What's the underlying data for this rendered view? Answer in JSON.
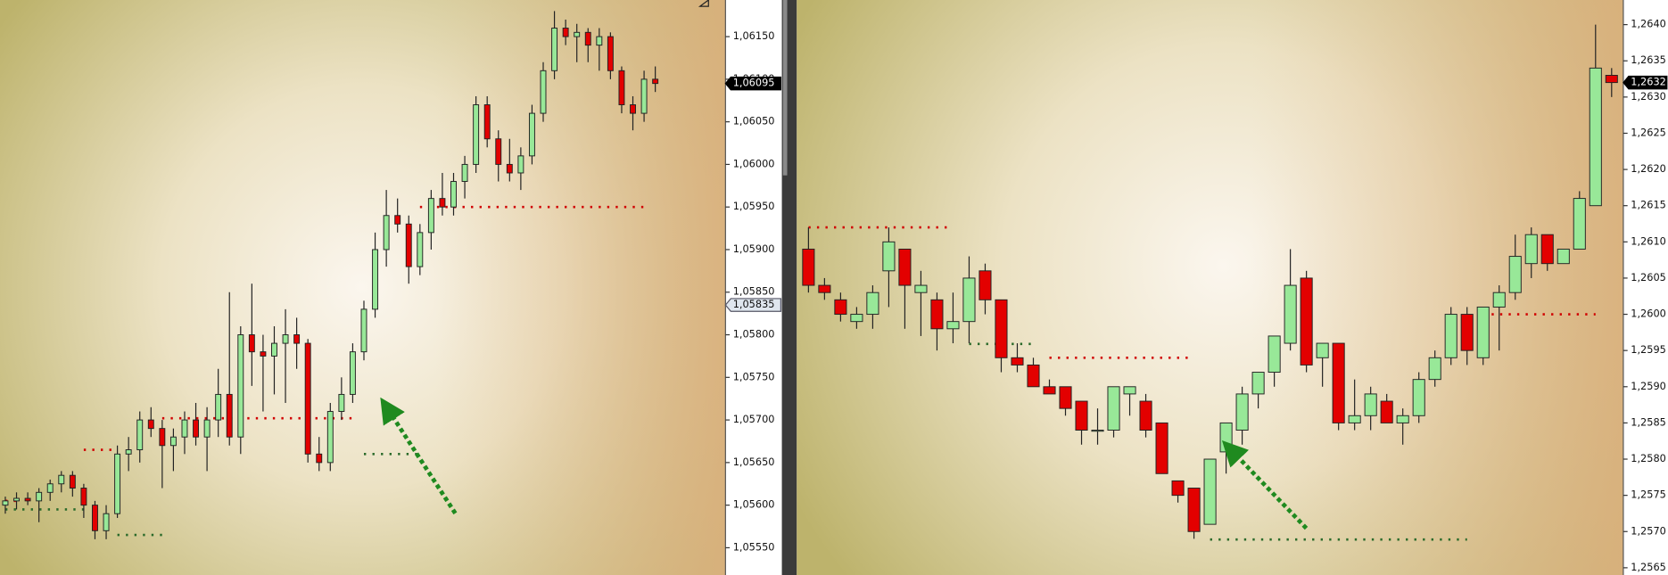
{
  "chart_data": [
    {
      "type": "candlestick",
      "ylim": [
        1.05518,
        1.06193
      ],
      "yticks": [
        {
          "value": 1.0555,
          "label": "1,05550"
        },
        {
          "value": 1.056,
          "label": "1,05600"
        },
        {
          "value": 1.0565,
          "label": "1,05650"
        },
        {
          "value": 1.057,
          "label": "1,05700"
        },
        {
          "value": 1.0575,
          "label": "1,05750"
        },
        {
          "value": 1.058,
          "label": "1,05800"
        },
        {
          "value": 1.0585,
          "label": "1,05850"
        },
        {
          "value": 1.059,
          "label": "1,05900"
        },
        {
          "value": 1.0595,
          "label": "1,05950"
        },
        {
          "value": 1.06,
          "label": "1,06000"
        },
        {
          "value": 1.0605,
          "label": "1,06050"
        },
        {
          "value": 1.061,
          "label": "1,06100"
        },
        {
          "value": 1.0615,
          "label": "1,06150"
        }
      ],
      "up_color": "#98e898",
      "down_color": "#e30000",
      "series": {
        "open": [
          1.056,
          1.05605,
          1.05608,
          1.05605,
          1.05615,
          1.05625,
          1.05635,
          1.0562,
          1.056,
          1.0557,
          1.0559,
          1.0566,
          1.05665,
          1.057,
          1.0569,
          1.0567,
          1.0568,
          1.057,
          1.0568,
          1.057,
          1.0573,
          1.0568,
          1.058,
          1.0578,
          1.05775,
          1.0579,
          1.058,
          1.0579,
          1.0566,
          1.0565,
          1.0571,
          1.0573,
          1.0578,
          1.0583,
          1.059,
          1.0594,
          1.0593,
          1.0588,
          1.0592,
          1.0596,
          1.0595,
          1.0598,
          1.06,
          1.0607,
          1.0603,
          1.06,
          1.0599,
          1.0601,
          1.0606,
          1.0611,
          1.0616,
          1.0615,
          1.06155,
          1.0614,
          1.0615,
          1.0611,
          1.0607,
          1.0606,
          1.061
        ],
        "high": [
          1.0561,
          1.05615,
          1.05615,
          1.0562,
          1.0563,
          1.0564,
          1.0564,
          1.05625,
          1.05605,
          1.056,
          1.0567,
          1.0568,
          1.0571,
          1.05715,
          1.057,
          1.0569,
          1.0571,
          1.0572,
          1.05715,
          1.0576,
          1.0585,
          1.0581,
          1.0586,
          1.058,
          1.0581,
          1.0583,
          1.0582,
          1.05795,
          1.0568,
          1.0572,
          1.0575,
          1.0579,
          1.0584,
          1.0592,
          1.0597,
          1.0596,
          1.0594,
          1.0593,
          1.0597,
          1.0599,
          1.0599,
          1.0601,
          1.0608,
          1.0608,
          1.0604,
          1.0603,
          1.0602,
          1.0607,
          1.0612,
          1.0618,
          1.0617,
          1.06165,
          1.0616,
          1.0616,
          1.06155,
          1.06115,
          1.0608,
          1.0611,
          1.06115
        ],
        "low": [
          1.0559,
          1.05595,
          1.056,
          1.0558,
          1.05605,
          1.05615,
          1.0561,
          1.05585,
          1.0556,
          1.0556,
          1.05585,
          1.0564,
          1.0565,
          1.0568,
          1.0562,
          1.0564,
          1.0566,
          1.0567,
          1.0564,
          1.0568,
          1.0567,
          1.0566,
          1.0574,
          1.0571,
          1.0573,
          1.0572,
          1.0576,
          1.0565,
          1.0564,
          1.0564,
          1.057,
          1.0572,
          1.0577,
          1.0582,
          1.0588,
          1.0592,
          1.0586,
          1.0587,
          1.059,
          1.0594,
          1.0594,
          1.0596,
          1.0599,
          1.0602,
          1.0598,
          1.0598,
          1.0597,
          1.06,
          1.0605,
          1.061,
          1.0614,
          1.0612,
          1.0612,
          1.0611,
          1.061,
          1.0606,
          1.0604,
          1.0605,
          1.06085
        ],
        "close": [
          1.05605,
          1.05608,
          1.05605,
          1.05615,
          1.05625,
          1.05635,
          1.0562,
          1.056,
          1.0557,
          1.0559,
          1.0566,
          1.05665,
          1.057,
          1.0569,
          1.0567,
          1.0568,
          1.057,
          1.0568,
          1.057,
          1.0573,
          1.0568,
          1.058,
          1.0578,
          1.05775,
          1.0579,
          1.058,
          1.0579,
          1.0566,
          1.0565,
          1.0571,
          1.0573,
          1.0578,
          1.0583,
          1.059,
          1.0594,
          1.0593,
          1.0588,
          1.0592,
          1.0596,
          1.0595,
          1.0598,
          1.06,
          1.0607,
          1.0603,
          1.06,
          1.0599,
          1.0601,
          1.0606,
          1.0611,
          1.0616,
          1.0615,
          1.06155,
          1.0614,
          1.0615,
          1.0611,
          1.0607,
          1.0606,
          1.061,
          1.06095
        ]
      },
      "levels": [
        {
          "value": 1.0595,
          "color": "#d00000",
          "from": 37,
          "to": 57
        },
        {
          "value": 1.05702,
          "color": "#d00000",
          "from": 14,
          "to": 31
        },
        {
          "value": 1.05665,
          "color": "#d00000",
          "from": 7,
          "to": 10
        },
        {
          "value": 1.05605,
          "color": "#d00000",
          "from": 0,
          "to": 1
        },
        {
          "value": 1.05595,
          "color": "#2a6a2a",
          "from": 0,
          "to": 7
        },
        {
          "value": 1.05565,
          "color": "#2a6a2a",
          "from": 10,
          "to": 14
        },
        {
          "value": 1.0566,
          "color": "#2a6a2a",
          "from": 32,
          "to": 37
        }
      ],
      "markers": [
        {
          "value": 1.06095,
          "label": "1,06095",
          "fill": "#000000"
        },
        {
          "value": 1.05835,
          "label": "1,05835",
          "fill": "#dfe6ee"
        }
      ]
    },
    {
      "type": "candlestick",
      "ylim": [
        1.2564,
        1.26434
      ],
      "yticks": [
        {
          "value": 1.2565,
          "label": "1,2565"
        },
        {
          "value": 1.257,
          "label": "1,2570"
        },
        {
          "value": 1.2575,
          "label": "1,2575"
        },
        {
          "value": 1.258,
          "label": "1,2580"
        },
        {
          "value": 1.2585,
          "label": "1,2585"
        },
        {
          "value": 1.259,
          "label": "1,2590"
        },
        {
          "value": 1.2595,
          "label": "1,2595"
        },
        {
          "value": 1.26,
          "label": "1,2600"
        },
        {
          "value": 1.2605,
          "label": "1,2605"
        },
        {
          "value": 1.261,
          "label": "1,2610"
        },
        {
          "value": 1.2615,
          "label": "1,2615"
        },
        {
          "value": 1.262,
          "label": "1,2620"
        },
        {
          "value": 1.2625,
          "label": "1,2625"
        },
        {
          "value": 1.263,
          "label": "1,2630"
        },
        {
          "value": 1.2635,
          "label": "1,2635"
        },
        {
          "value": 1.264,
          "label": "1,2640"
        }
      ],
      "up_color": "#98e898",
      "down_color": "#e30000",
      "series": {
        "open": [
          1.2609,
          1.2604,
          1.2602,
          1.2599,
          1.26,
          1.2606,
          1.2609,
          1.2603,
          1.2602,
          1.2598,
          1.2599,
          1.2606,
          1.2602,
          1.2594,
          1.2593,
          1.259,
          1.259,
          1.2588,
          1.2584,
          1.2584,
          1.2589,
          1.2588,
          1.2585,
          1.2577,
          1.2576,
          1.2571,
          1.2581,
          1.2584,
          1.2589,
          1.2592,
          1.2596,
          1.2605,
          1.2594,
          1.2596,
          1.2585,
          1.2586,
          1.2588,
          1.2585,
          1.2586,
          1.2591,
          1.2594,
          1.26,
          1.2594,
          1.2601,
          1.2603,
          1.2607,
          1.2611,
          1.2607,
          1.2609,
          1.2615,
          1.2633
        ],
        "high": [
          1.2612,
          1.2605,
          1.2603,
          1.2601,
          1.2604,
          1.2612,
          1.2609,
          1.2606,
          1.2603,
          1.2603,
          1.2608,
          1.2607,
          1.2602,
          1.2596,
          1.2594,
          1.2591,
          1.259,
          1.2588,
          1.2587,
          1.259,
          1.259,
          1.2589,
          1.2585,
          1.2577,
          1.2576,
          1.258,
          1.2585,
          1.259,
          1.2592,
          1.2597,
          1.2609,
          1.2606,
          1.2596,
          1.2596,
          1.2591,
          1.259,
          1.2589,
          1.2587,
          1.2592,
          1.2595,
          1.2601,
          1.2601,
          1.2601,
          1.2604,
          1.2611,
          1.2612,
          1.2611,
          1.2609,
          1.2617,
          1.264,
          1.2634
        ],
        "low": [
          1.2603,
          1.2602,
          1.2599,
          1.2598,
          1.2598,
          1.2601,
          1.2598,
          1.2597,
          1.2595,
          1.2596,
          1.2596,
          1.26,
          1.2592,
          1.2592,
          1.259,
          1.2589,
          1.2586,
          1.2582,
          1.2582,
          1.2583,
          1.2586,
          1.2583,
          1.2578,
          1.2574,
          1.2569,
          1.2571,
          1.2578,
          1.2582,
          1.2587,
          1.259,
          1.2595,
          1.2592,
          1.259,
          1.2584,
          1.2584,
          1.2584,
          1.2585,
          1.2582,
          1.2585,
          1.259,
          1.2593,
          1.2593,
          1.2593,
          1.2595,
          1.2602,
          1.2605,
          1.2606,
          1.2607,
          1.2609,
          1.2615,
          1.263
        ],
        "close": [
          1.2604,
          1.2603,
          1.26,
          1.26,
          1.2603,
          1.261,
          1.2604,
          1.2604,
          1.2598,
          1.2599,
          1.2605,
          1.2602,
          1.2594,
          1.2593,
          1.259,
          1.2589,
          1.2587,
          1.2584,
          1.2584,
          1.259,
          1.259,
          1.2584,
          1.2578,
          1.2575,
          1.257,
          1.258,
          1.2585,
          1.2589,
          1.2592,
          1.2597,
          1.2604,
          1.2593,
          1.2596,
          1.2585,
          1.2586,
          1.2589,
          1.2585,
          1.2586,
          1.2591,
          1.2594,
          1.26,
          1.2595,
          1.2601,
          1.2603,
          1.2608,
          1.2611,
          1.2607,
          1.2609,
          1.2616,
          1.2634,
          1.2632
        ]
      },
      "levels": [
        {
          "value": 1.2612,
          "color": "#d00000",
          "from": 0,
          "to": 9
        },
        {
          "value": 1.25959,
          "color": "#2a6a2a",
          "from": 10,
          "to": 14
        },
        {
          "value": 1.2594,
          "color": "#d00000",
          "from": 15,
          "to": 24
        },
        {
          "value": 1.25689,
          "color": "#2a6a2a",
          "from": 25,
          "to": 41
        },
        {
          "value": 1.26,
          "color": "#d00000",
          "from": 42,
          "to": 49
        }
      ],
      "markers": [
        {
          "value": 1.2632,
          "label": "1,2632",
          "fill": "#000000"
        }
      ]
    }
  ]
}
